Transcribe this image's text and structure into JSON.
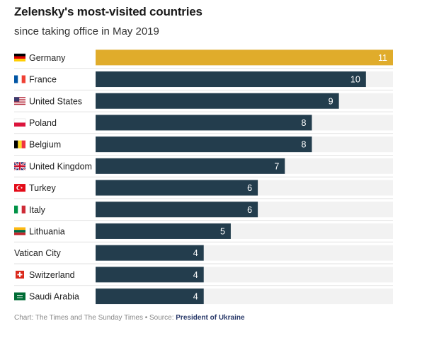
{
  "title": "Zelensky's most-visited countries",
  "subtitle": "since taking office in May 2019",
  "footer": {
    "chart_credit": "Chart: The Times and The Sunday Times",
    "separator": " • ",
    "source_prefix": "Source: ",
    "source_name": "President of Ukraine"
  },
  "colors": {
    "highlight": "#e0ac2b",
    "bar": "#233d4d",
    "track": "#f2f2f2",
    "divider": "#e2e2e2"
  },
  "chart_data": {
    "type": "bar",
    "orientation": "horizontal",
    "categories": [
      "Germany",
      "France",
      "United States",
      "Poland",
      "Belgium",
      "United Kingdom",
      "Turkey",
      "Italy",
      "Lithuania",
      "Vatican City",
      "Switzerland",
      "Saudi Arabia"
    ],
    "values": [
      11,
      10,
      9,
      8,
      8,
      7,
      6,
      6,
      5,
      4,
      4,
      4
    ],
    "flags": [
      "flag-germany",
      "flag-france",
      "flag-united-states",
      "flag-poland",
      "flag-belgium",
      "flag-united-kingdom",
      "flag-turkey",
      "flag-italy",
      "flag-lithuania",
      null,
      "flag-switzerland",
      "flag-saudi-arabia"
    ],
    "highlighted": [
      "Germany"
    ],
    "xlim": [
      0,
      11
    ],
    "grid": false,
    "legend": "none"
  }
}
